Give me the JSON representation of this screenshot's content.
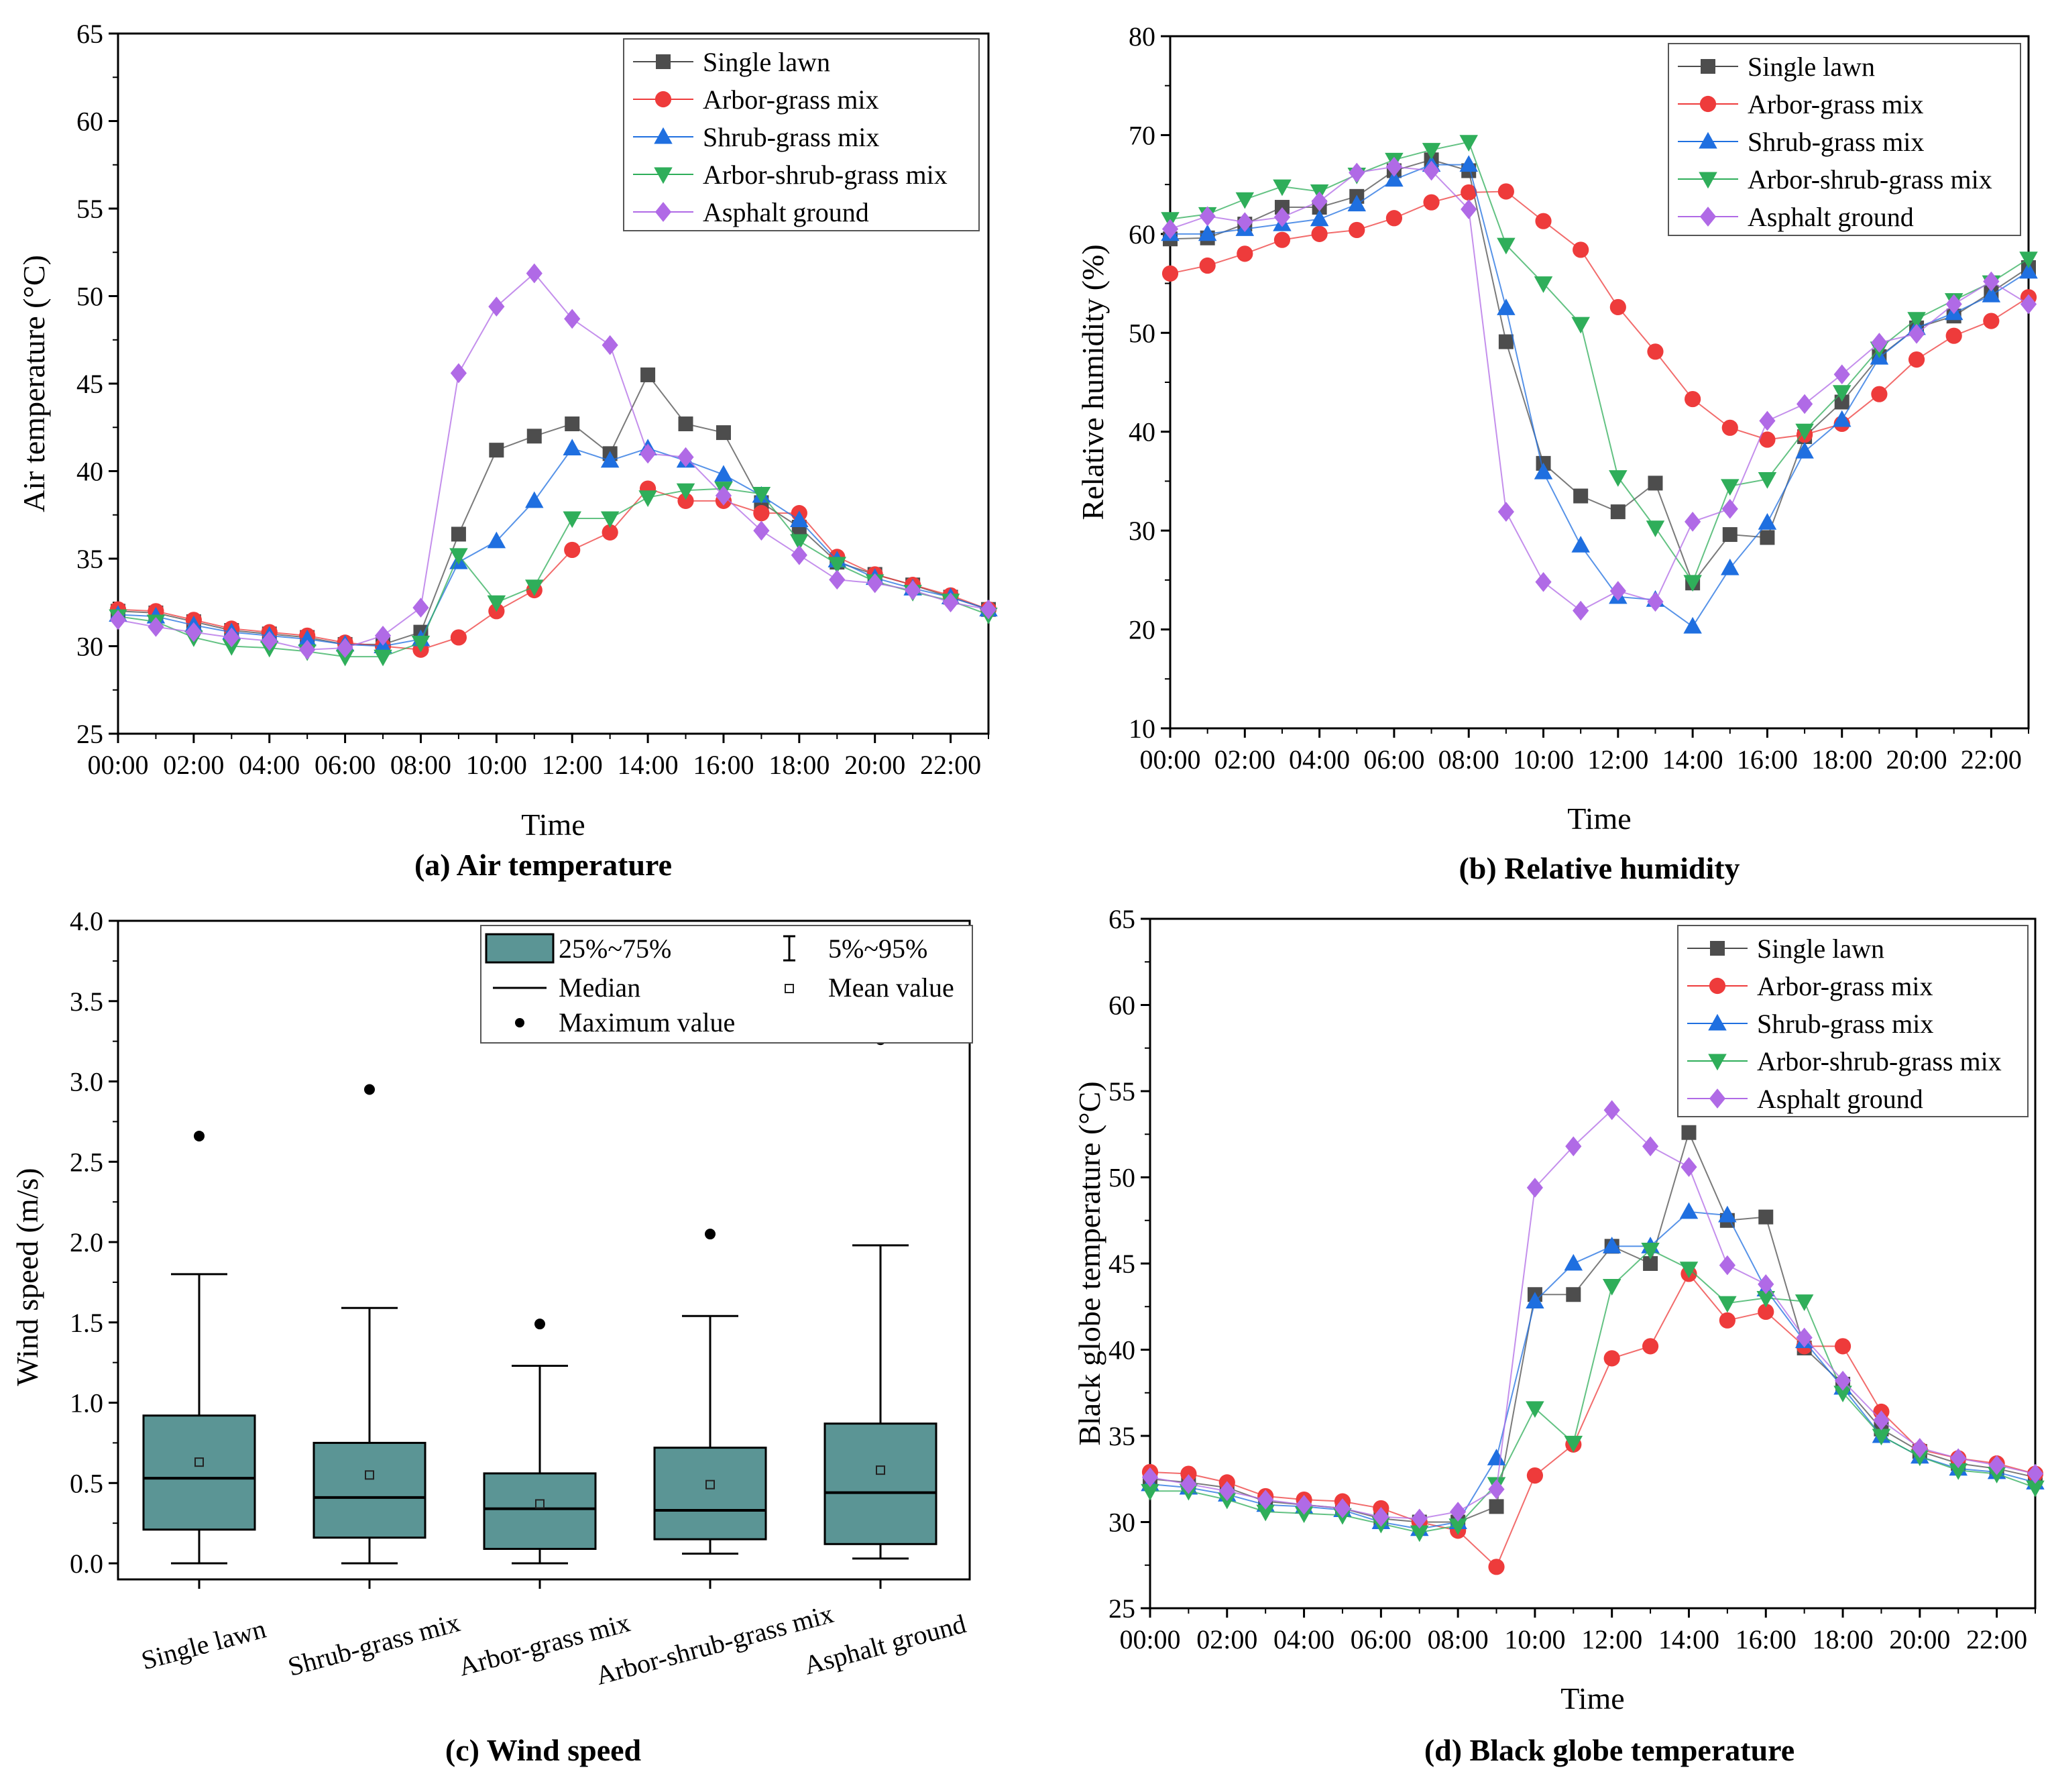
{
  "colors": {
    "Single lawn": "#4d4d4d",
    "Arbor-grass mix": "#ee3b3b",
    "Shrub-grass mix": "#1f6fe0",
    "Arbor-shrub-grass mix": "#2fae5a",
    "Asphalt ground": "#b06ae6",
    "box_fill": "#5b9595"
  },
  "chart_data": [
    {
      "id": "a",
      "type": "line",
      "caption": "(a) Air temperature",
      "xlabel": "Time",
      "ylabel": "Air temperature (°C)",
      "ylim": [
        25,
        65
      ],
      "yticks": [
        "25",
        "30",
        "35",
        "40",
        "45",
        "50",
        "55",
        "60",
        "65"
      ],
      "xticks": [
        "00:00",
        "02:00",
        "04:00",
        "06:00",
        "08:00",
        "10:00",
        "12:00",
        "14:00",
        "16:00",
        "18:00",
        "20:00",
        "22:00"
      ],
      "x": [
        0,
        1,
        2,
        3,
        4,
        5,
        6,
        7,
        8,
        9,
        10,
        11,
        12,
        13,
        14,
        15,
        16,
        17,
        18,
        19,
        20,
        21,
        22,
        23
      ],
      "legend": [
        "Single lawn",
        "Arbor-grass mix",
        "Shrub-grass mix",
        "Arbor-shrub-grass mix",
        "Asphalt ground"
      ],
      "series": [
        {
          "name": "Single lawn",
          "marker": "square",
          "values": [
            32.0,
            31.9,
            31.4,
            30.9,
            30.7,
            30.5,
            30.1,
            30.1,
            30.8,
            36.4,
            41.2,
            42.0,
            42.7,
            41.0,
            45.5,
            42.7,
            42.2,
            38.2,
            36.8,
            34.8,
            34.1,
            33.5,
            32.8,
            32.1
          ]
        },
        {
          "name": "Arbor-grass mix",
          "marker": "circle",
          "values": [
            32.1,
            32.0,
            31.5,
            31.0,
            30.8,
            30.6,
            30.2,
            30.0,
            29.8,
            30.5,
            32.0,
            33.2,
            35.5,
            36.5,
            39.0,
            38.3,
            38.3,
            37.6,
            37.6,
            35.1,
            34.1,
            33.5,
            32.9,
            32.1
          ]
        },
        {
          "name": "Shrub-grass mix",
          "marker": "triangle-up",
          "values": [
            31.8,
            31.7,
            31.2,
            30.8,
            30.6,
            30.4,
            30.1,
            30.0,
            30.4,
            34.8,
            36.0,
            38.3,
            41.3,
            40.6,
            41.3,
            40.6,
            39.8,
            38.6,
            37.2,
            34.9,
            33.9,
            33.3,
            32.8,
            32.1
          ]
        },
        {
          "name": "Arbor-shrub-grass mix",
          "marker": "triangle-down",
          "values": [
            31.7,
            31.4,
            30.5,
            30.0,
            29.9,
            29.7,
            29.4,
            29.4,
            30.2,
            35.2,
            32.5,
            33.4,
            37.3,
            37.3,
            38.5,
            38.9,
            39.0,
            38.7,
            36.0,
            34.7,
            33.7,
            33.1,
            32.6,
            31.8
          ]
        },
        {
          "name": "Asphalt ground",
          "marker": "diamond",
          "values": [
            31.5,
            31.1,
            30.8,
            30.5,
            30.3,
            29.8,
            29.9,
            30.6,
            32.2,
            45.6,
            49.4,
            51.3,
            48.7,
            47.2,
            41.0,
            40.8,
            38.6,
            36.6,
            35.2,
            33.8,
            33.6,
            33.2,
            32.5,
            32.1
          ]
        }
      ]
    },
    {
      "id": "b",
      "type": "line",
      "caption": "(b) Relative humidity",
      "xlabel": "Time",
      "ylabel": "Relative humidity (%)",
      "ylim": [
        10,
        80
      ],
      "yticks": [
        "10",
        "20",
        "30",
        "40",
        "50",
        "60",
        "70",
        "80"
      ],
      "xticks": [
        "00:00",
        "02:00",
        "04:00",
        "06:00",
        "08:00",
        "10:00",
        "12:00",
        "14:00",
        "16:00",
        "18:00",
        "20:00",
        "22:00"
      ],
      "x": [
        0,
        1,
        2,
        3,
        4,
        5,
        6,
        7,
        8,
        9,
        10,
        11,
        12,
        13,
        14,
        15,
        16,
        17,
        18,
        19,
        20,
        21,
        22,
        23
      ],
      "legend": [
        "Single lawn",
        "Arbor-grass mix",
        "Shrub-grass mix",
        "Arbor-shrub-grass mix",
        "Asphalt ground"
      ],
      "series": [
        {
          "name": "Single lawn",
          "marker": "square",
          "values": [
            59.5,
            59.6,
            61.0,
            62.7,
            62.7,
            63.8,
            66.4,
            67.5,
            66.4,
            49.1,
            36.8,
            33.5,
            31.9,
            34.8,
            24.7,
            29.6,
            29.3,
            39.5,
            43.0,
            47.6,
            50.5,
            51.7,
            54.1,
            56.6
          ]
        },
        {
          "name": "Arbor-grass mix",
          "marker": "circle",
          "values": [
            56.0,
            56.8,
            58.0,
            59.4,
            60.0,
            60.4,
            61.6,
            63.2,
            64.2,
            64.3,
            61.3,
            58.4,
            52.6,
            48.1,
            43.3,
            40.4,
            39.2,
            39.7,
            40.8,
            43.8,
            47.3,
            49.7,
            51.2,
            53.6
          ]
        },
        {
          "name": "Shrub-grass mix",
          "marker": "triangle-up",
          "values": [
            60.0,
            60.0,
            60.5,
            61.0,
            61.5,
            63.0,
            65.5,
            67.0,
            67.0,
            52.5,
            35.9,
            28.5,
            23.3,
            23.0,
            20.3,
            26.2,
            30.8,
            38.0,
            41.2,
            47.5,
            50.5,
            52.0,
            53.8,
            56.2
          ]
        },
        {
          "name": "Arbor-shrub-grass mix",
          "marker": "triangle-down",
          "values": [
            61.5,
            62.0,
            63.5,
            64.8,
            64.3,
            66.0,
            67.5,
            68.5,
            69.3,
            58.9,
            55.0,
            50.9,
            35.4,
            30.3,
            24.8,
            34.5,
            35.2,
            40.1,
            44.0,
            48.4,
            51.4,
            53.3,
            55.1,
            57.5
          ]
        },
        {
          "name": "Asphalt ground",
          "marker": "diamond",
          "values": [
            60.5,
            61.8,
            61.2,
            61.7,
            63.3,
            66.2,
            66.8,
            66.4,
            62.5,
            31.9,
            24.8,
            21.9,
            23.9,
            22.8,
            30.9,
            32.2,
            41.1,
            42.8,
            45.8,
            49.0,
            49.9,
            52.9,
            55.2,
            52.9
          ]
        }
      ]
    },
    {
      "id": "c",
      "type": "box",
      "caption": "(c) Wind speed",
      "ylabel": "Wind speed (m/s)",
      "ylim": [
        -0.1,
        4.0
      ],
      "yticks": [
        "0.0",
        "0.5",
        "1.0",
        "1.5",
        "2.0",
        "2.5",
        "3.0",
        "3.5",
        "4.0"
      ],
      "categories": [
        "Single lawn",
        "Shrub-grass mix",
        "Arbor-grass mix",
        "Arbor-shrub-grass mix",
        "Asphalt ground"
      ],
      "legend": {
        "box": "25%~75%",
        "whisker": "5%~95%",
        "median": "Median",
        "mean": "Mean value",
        "max": "Maximum value"
      },
      "boxes": [
        {
          "p5": 0.0,
          "q1": 0.21,
          "median": 0.53,
          "q3": 0.92,
          "p95": 1.8,
          "mean": 0.63,
          "max": 2.66
        },
        {
          "p5": 0.0,
          "q1": 0.16,
          "median": 0.41,
          "q3": 0.75,
          "p95": 1.59,
          "mean": 0.55,
          "max": 2.95
        },
        {
          "p5": 0.0,
          "q1": 0.09,
          "median": 0.34,
          "q3": 0.56,
          "p95": 1.23,
          "mean": 0.37,
          "max": 1.49
        },
        {
          "p5": 0.06,
          "q1": 0.15,
          "median": 0.33,
          "q3": 0.72,
          "p95": 1.54,
          "mean": 0.49,
          "max": 2.05
        },
        {
          "p5": 0.03,
          "q1": 0.12,
          "median": 0.44,
          "q3": 0.87,
          "p95": 1.98,
          "mean": 0.58,
          "max": 3.26
        }
      ]
    },
    {
      "id": "d",
      "type": "line",
      "caption": "(d) Black globe temperature",
      "xlabel": "Time",
      "ylabel": "Black globe temperature (°C)",
      "ylim": [
        25,
        65
      ],
      "yticks": [
        "25",
        "30",
        "35",
        "40",
        "45",
        "50",
        "55",
        "60",
        "65"
      ],
      "xticks": [
        "00:00",
        "02:00",
        "04:00",
        "06:00",
        "08:00",
        "10:00",
        "12:00",
        "14:00",
        "16:00",
        "18:00",
        "20:00",
        "22:00"
      ],
      "x": [
        0,
        1,
        2,
        3,
        4,
        5,
        6,
        7,
        8,
        9,
        10,
        11,
        12,
        13,
        14,
        15,
        16,
        17,
        18,
        19,
        20,
        21,
        22,
        23
      ],
      "legend": [
        "Single lawn",
        "Arbor-grass mix",
        "Shrub-grass mix",
        "Arbor-shrub-grass mix",
        "Asphalt ground"
      ],
      "series": [
        {
          "name": "Single lawn",
          "marker": "square",
          "values": [
            32.5,
            32.3,
            32.0,
            31.2,
            31.0,
            30.8,
            30.2,
            30.0,
            30.0,
            30.9,
            43.2,
            43.2,
            46.0,
            45.0,
            52.6,
            47.5,
            47.7,
            40.1,
            38.0,
            35.4,
            34.1,
            33.4,
            33.1,
            32.6
          ]
        },
        {
          "name": "Arbor-grass mix",
          "marker": "circle",
          "values": [
            32.9,
            32.8,
            32.3,
            31.5,
            31.3,
            31.2,
            30.8,
            30.0,
            29.5,
            27.4,
            32.7,
            34.5,
            39.5,
            40.2,
            44.4,
            41.7,
            42.2,
            40.2,
            40.2,
            36.4,
            34.2,
            33.7,
            33.4,
            32.8
          ]
        },
        {
          "name": "Shrub-grass mix",
          "marker": "triangle-up",
          "values": [
            32.2,
            32.0,
            31.6,
            31.0,
            30.9,
            30.7,
            30.0,
            29.6,
            30.0,
            33.7,
            42.8,
            45.0,
            46.0,
            46.0,
            48.0,
            47.8,
            43.5,
            40.5,
            37.8,
            35.0,
            33.8,
            33.1,
            32.9,
            32.3
          ]
        },
        {
          "name": "Arbor-shrub-grass mix",
          "marker": "triangle-down",
          "values": [
            31.8,
            31.8,
            31.3,
            30.6,
            30.5,
            30.4,
            29.9,
            29.4,
            29.8,
            32.2,
            36.6,
            34.6,
            43.7,
            45.8,
            44.7,
            42.7,
            43.0,
            42.8,
            37.5,
            35.0,
            33.8,
            33.0,
            32.8,
            32.0
          ]
        },
        {
          "name": "Asphalt ground",
          "marker": "diamond",
          "values": [
            32.6,
            32.2,
            31.8,
            31.3,
            31.0,
            30.8,
            30.3,
            30.2,
            30.6,
            31.9,
            49.4,
            51.8,
            53.9,
            51.8,
            50.6,
            44.9,
            43.8,
            40.7,
            38.2,
            35.9,
            34.3,
            33.7,
            33.3,
            32.8
          ]
        }
      ]
    }
  ]
}
